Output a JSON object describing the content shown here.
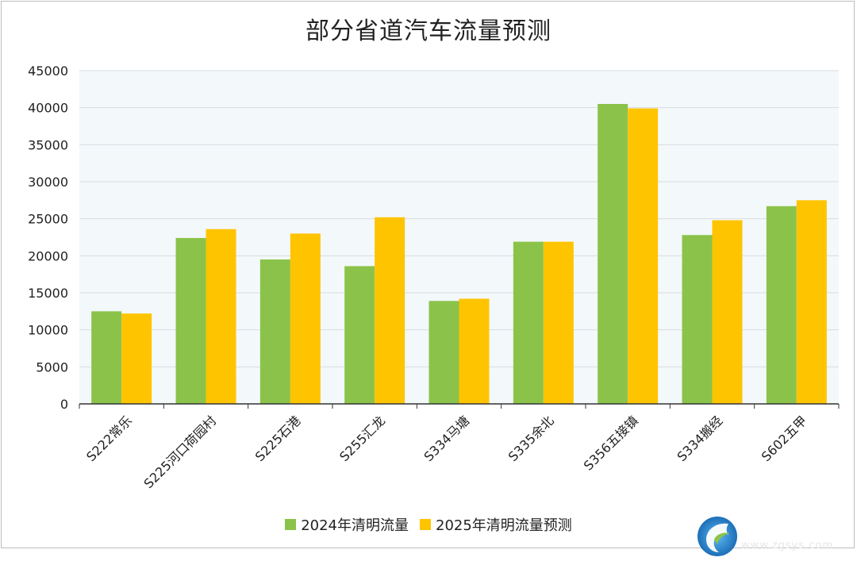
{
  "chart_data": {
    "type": "bar",
    "title": "部分省道汽车流量预测",
    "xlabel": "",
    "ylabel": "",
    "categories": [
      "S222常乐",
      "S225河口荷园村",
      "S225石港",
      "S255汇龙",
      "S334马塘",
      "S335余北",
      "S356五接镇",
      "S334搬经",
      "S602五甲"
    ],
    "series": [
      {
        "name": "2024年清明流量",
        "color": "#8bc34a",
        "values": [
          12500,
          22400,
          19500,
          18600,
          13900,
          21900,
          40500,
          22800,
          26700
        ]
      },
      {
        "name": "2025年清明流量预测",
        "color": "#ffc400",
        "values": [
          12200,
          23600,
          23000,
          25200,
          14200,
          21900,
          39900,
          24800,
          27500
        ]
      }
    ],
    "ylim": [
      0,
      45000
    ],
    "yticks": [
      "0",
      "5000",
      "10000",
      "15000",
      "20000",
      "25000",
      "30000",
      "35000",
      "40000",
      "45000"
    ],
    "grid": true,
    "legend_position": "bottom-center",
    "plot_background": "#f3f8fb"
  },
  "watermark_text": "www.zgsys.com"
}
